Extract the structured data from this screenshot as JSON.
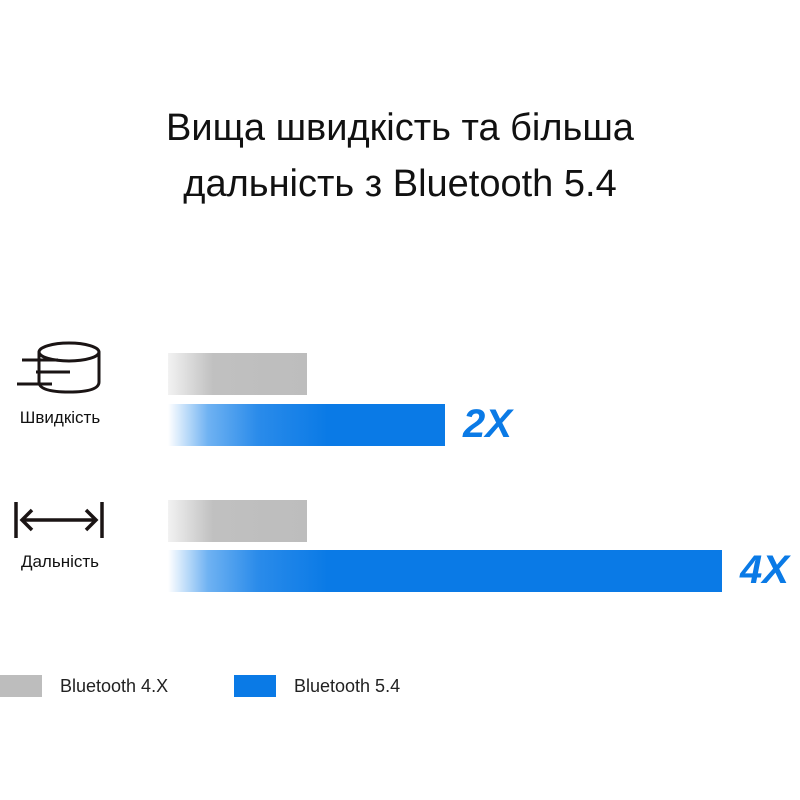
{
  "title_lines": [
    "Вища швидкість та більша",
    "дальність з Bluetooth 5.4"
  ],
  "chart_data": {
    "type": "bar",
    "orientation": "horizontal",
    "categories": [
      "Швидкість",
      "Дальність"
    ],
    "category_icons": [
      "database-speed-icon",
      "range-arrow-icon"
    ],
    "series": [
      {
        "name": "Bluetooth 4.X",
        "values": [
          1,
          1
        ],
        "color": "#bdbdbd"
      },
      {
        "name": "Bluetooth 5.4",
        "values": [
          2,
          4
        ],
        "color": "#0a7ae6"
      }
    ],
    "annotations": [
      "2X",
      "4X"
    ],
    "legend_position": "bottom-left",
    "grid": false
  }
}
